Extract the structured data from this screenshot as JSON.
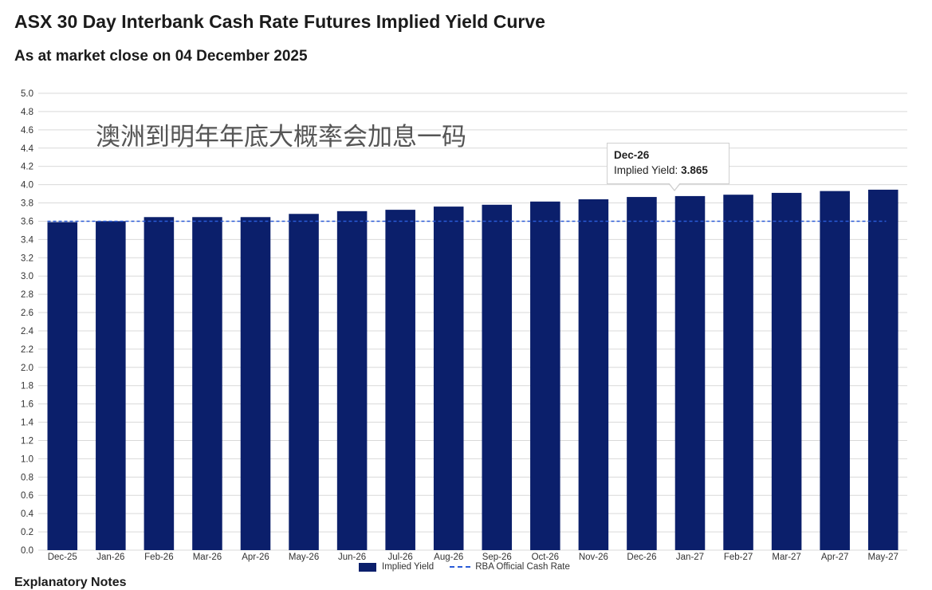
{
  "header": {
    "title": "ASX 30 Day Interbank Cash Rate Futures Implied Yield Curve",
    "subtitle": "As at market close on 04 December 2025"
  },
  "overlay_text": "澳洲到明年年底大概率会加息一码",
  "tooltip": {
    "category": "Dec-26",
    "label": "Implied Yield:",
    "value": "3.865"
  },
  "legend": {
    "bar_label": "Implied Yield",
    "line_label": "RBA Official Cash Rate"
  },
  "footer": {
    "text": "Explanatory Notes"
  },
  "colors": {
    "bar": "#0b1f6b",
    "line": "#2a5bd7",
    "grid": "#d9d9d9"
  },
  "chart_data": {
    "type": "bar",
    "title": "ASX 30 Day Interbank Cash Rate Futures Implied Yield Curve",
    "subtitle": "As at market close on 04 December 2025",
    "xlabel": "",
    "ylabel": "",
    "categories": [
      "Dec-25",
      "Jan-26",
      "Feb-26",
      "Mar-26",
      "Apr-26",
      "May-26",
      "Jun-26",
      "Jul-26",
      "Aug-26",
      "Sep-26",
      "Oct-26",
      "Nov-26",
      "Dec-26",
      "Jan-27",
      "Feb-27",
      "Mar-27",
      "Apr-27",
      "May-27"
    ],
    "series": [
      {
        "name": "Implied Yield",
        "type": "bar",
        "values": [
          3.59,
          3.6,
          3.645,
          3.645,
          3.645,
          3.68,
          3.71,
          3.725,
          3.76,
          3.78,
          3.815,
          3.84,
          3.865,
          3.875,
          3.89,
          3.91,
          3.93,
          3.945
        ]
      },
      {
        "name": "RBA Official Cash Rate",
        "type": "line",
        "style": "dashed",
        "values": [
          3.6,
          3.6,
          3.6,
          3.6,
          3.6,
          3.6,
          3.6,
          3.6,
          3.6,
          3.6,
          3.6,
          3.6,
          3.6,
          3.6,
          3.6,
          3.6,
          3.6,
          3.6
        ]
      }
    ],
    "ylim": [
      0,
      5.0
    ],
    "ytick_step": 0.2,
    "grid": true,
    "legend_position": "bottom-center"
  }
}
